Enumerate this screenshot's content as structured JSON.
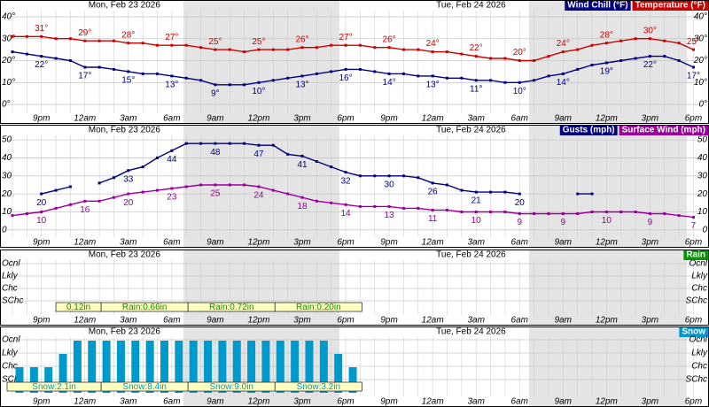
{
  "time_axis": {
    "categories": [
      null,
      null,
      "9pm",
      null,
      null,
      "12am",
      null,
      null,
      "3am",
      null,
      null,
      "6am",
      null,
      null,
      "9am",
      null,
      null,
      "12pm",
      null,
      null,
      "3pm",
      null,
      null,
      "6pm",
      null,
      null,
      "9pm",
      null,
      null,
      "12am",
      null,
      null,
      "3am",
      null,
      null,
      "6am",
      null,
      null,
      "9am",
      null,
      null,
      "12pm",
      null,
      null,
      "3pm",
      null,
      null,
      "6pm"
    ],
    "dates": [
      "Mon, Feb 23 2026",
      "Tue, Feb 24 2026"
    ]
  },
  "chart_data": [
    {
      "type": "line",
      "ylim": [
        -4,
        42
      ],
      "yticks": [
        {
          "value": 0,
          "label": "0°"
        },
        {
          "value": 10,
          "label": "10°"
        },
        {
          "value": 20,
          "label": "20°"
        },
        {
          "value": 30,
          "label": "30°"
        },
        {
          "value": 40,
          "label": "40°"
        }
      ],
      "series": [
        {
          "name": "Wind Chill (°F)",
          "color": "#000080",
          "label_side": "below",
          "values": [
            24,
            23,
            22,
            21,
            20,
            17,
            17,
            16,
            15,
            14,
            14,
            13,
            12,
            11,
            9,
            9,
            9,
            10,
            11,
            12,
            13,
            14,
            15,
            16,
            16,
            15,
            14,
            14,
            13,
            13,
            12,
            12,
            11,
            11,
            10,
            10,
            11,
            13,
            14,
            16,
            18,
            19,
            20,
            21,
            22,
            22,
            20,
            17
          ],
          "value_labels": [
            null,
            null,
            "22°",
            null,
            null,
            "17°",
            null,
            null,
            "15°",
            null,
            null,
            "13°",
            null,
            null,
            "9°",
            null,
            null,
            "10°",
            null,
            null,
            "13°",
            null,
            null,
            "16°",
            null,
            null,
            "14°",
            null,
            null,
            "13°",
            null,
            null,
            "11°",
            null,
            null,
            "10°",
            null,
            null,
            "14°",
            null,
            null,
            "19°",
            null,
            null,
            "22°",
            null,
            null,
            "17°"
          ]
        },
        {
          "name": "Temperature (°F)",
          "color": "#cc0000",
          "label_side": "above",
          "values": [
            31,
            31,
            31,
            30,
            30,
            29,
            29,
            29,
            28,
            28,
            27,
            27,
            27,
            26,
            25,
            25,
            24,
            25,
            25,
            25,
            26,
            26,
            27,
            27,
            27,
            26,
            26,
            25,
            25,
            24,
            24,
            23,
            22,
            21,
            21,
            20,
            20,
            22,
            24,
            25,
            27,
            28,
            29,
            30,
            30,
            29,
            28,
            25
          ],
          "value_labels": [
            null,
            null,
            "31°",
            null,
            null,
            "29°",
            null,
            null,
            "28°",
            null,
            null,
            "27°",
            null,
            null,
            "25°",
            null,
            null,
            "25°",
            null,
            null,
            "26°",
            null,
            null,
            "27°",
            null,
            null,
            "26°",
            null,
            null,
            "24°",
            null,
            null,
            "22°",
            null,
            null,
            "20°",
            null,
            null,
            "24°",
            null,
            null,
            "28°",
            null,
            null,
            "30°",
            null,
            null,
            "25°"
          ]
        }
      ]
    },
    {
      "type": "line",
      "ylim": [
        -5,
        53
      ],
      "yticks": [
        0,
        10,
        20,
        30,
        40,
        50
      ],
      "series": [
        {
          "name": "Gusts (mph)",
          "color": "#000080",
          "label_side": "below",
          "values": [
            null,
            null,
            20,
            22,
            24,
            null,
            26,
            29,
            33,
            35,
            40,
            44,
            48,
            48,
            48,
            48,
            48,
            47,
            47,
            42,
            41,
            38,
            35,
            32,
            30,
            30,
            30,
            30,
            29,
            26,
            25,
            22,
            21,
            21,
            21,
            20,
            null,
            null,
            null,
            20,
            20,
            null,
            null,
            null,
            null,
            null,
            null,
            null
          ]
        },
        {
          "name": "Surface Wind (mph)",
          "color": "#990099",
          "label_side": "below",
          "values": [
            8,
            9,
            10,
            12,
            14,
            16,
            16,
            18,
            20,
            21,
            22,
            23,
            24,
            25,
            25,
            25,
            25,
            24,
            22,
            20,
            18,
            16,
            15,
            14,
            13,
            13,
            13,
            12,
            12,
            11,
            11,
            10,
            10,
            10,
            10,
            9,
            9,
            9,
            9,
            9,
            10,
            10,
            10,
            10,
            9,
            9,
            8,
            7
          ]
        }
      ],
      "label_index": [
        2,
        5,
        8,
        11,
        14,
        17,
        20,
        23,
        26,
        29,
        32,
        35,
        38,
        41,
        44,
        47
      ]
    },
    {
      "type": "bar",
      "levels": [
        "Ocnl",
        "Lkly",
        "Chc",
        "SChc"
      ],
      "series": [
        {
          "name": "Rain",
          "color": "#009900",
          "values": []
        }
      ],
      "totals": [
        "0.12in",
        "Rain:0.66in",
        "Rain:0.72in",
        "Rain:0.20in"
      ]
    },
    {
      "type": "bar",
      "levels": [
        "Ocnl",
        "Lkly",
        "Chc",
        "SChc"
      ],
      "series": [
        {
          "name": "Snow",
          "color": "#0099cc",
          "values": [
            "Chc",
            "Chc",
            "Chc",
            "Lkly",
            "Ocnl",
            "Ocnl",
            "Ocnl",
            "Ocnl",
            "Ocnl",
            "Ocnl",
            "Ocnl",
            "Ocnl",
            "Ocnl",
            "Ocnl",
            "Ocnl",
            "Ocnl",
            "Ocnl",
            "Ocnl",
            "Ocnl",
            "Ocnl",
            "Ocnl",
            "Ocnl",
            "Lkly",
            "Chc",
            null,
            null,
            null,
            null,
            null,
            null,
            null,
            null,
            null,
            null,
            null,
            null,
            null,
            null,
            null,
            null,
            null,
            null,
            null,
            null,
            null,
            null,
            null,
            null
          ]
        }
      ],
      "totals": [
        "Snow:2.1in",
        "Snow:8.4in",
        "Snow:9.0in",
        "Snow:3.2in"
      ]
    }
  ]
}
